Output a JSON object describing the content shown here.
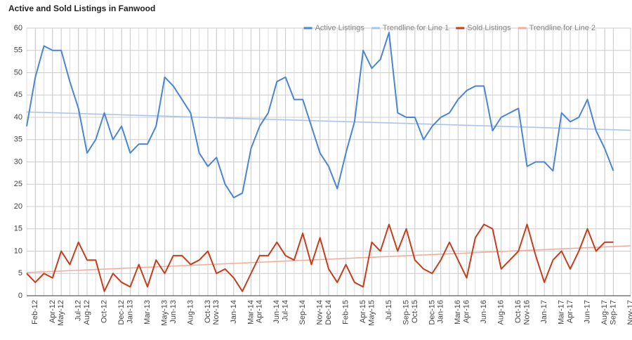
{
  "chart_data": {
    "type": "line",
    "title": "Active and Sold Listings in Fanwood",
    "x": [
      "2012-01",
      "2012-02",
      "2012-03",
      "2012-04",
      "2012-05",
      "2012-06",
      "2012-07",
      "2012-08",
      "2012-09",
      "2012-10",
      "2012-11",
      "2012-12",
      "2013-01",
      "2013-02",
      "2013-03",
      "2013-04",
      "2013-05",
      "2013-06",
      "2013-07",
      "2013-08",
      "2013-09",
      "2013-10",
      "2013-11",
      "2013-12",
      "2014-01",
      "2014-02",
      "2014-03",
      "2014-04",
      "2014-05",
      "2014-06",
      "2014-07",
      "2014-08",
      "2014-09",
      "2014-10",
      "2014-11",
      "2014-12",
      "2015-01",
      "2015-02",
      "2015-03",
      "2015-04",
      "2015-05",
      "2015-06",
      "2015-07",
      "2015-08",
      "2015-09",
      "2015-10",
      "2015-11",
      "2015-12",
      "2016-01",
      "2016-02",
      "2016-03",
      "2016-04",
      "2016-05",
      "2016-06",
      "2016-07",
      "2016-08",
      "2016-09",
      "2016-10",
      "2016-11",
      "2016-12",
      "2017-01",
      "2017-02",
      "2017-03",
      "2017-04",
      "2017-05",
      "2017-06",
      "2017-07",
      "2017-08",
      "2017-09"
    ],
    "series": [
      {
        "name": "Active Listings",
        "color": "#4a85d3",
        "values": [
          38,
          49,
          56,
          55,
          55,
          48,
          42,
          32,
          35,
          41,
          35,
          38,
          32,
          34,
          34,
          38,
          49,
          47,
          44,
          41,
          32,
          29,
          31,
          25,
          22,
          23,
          33,
          38,
          41,
          48,
          49,
          44,
          44,
          38,
          32,
          29,
          24,
          32,
          39,
          55,
          51,
          53,
          59,
          41,
          40,
          40,
          35,
          38,
          40,
          41,
          44,
          46,
          47,
          47,
          37,
          40,
          41,
          42,
          29,
          30,
          30,
          28,
          41,
          39,
          40,
          44,
          37,
          33,
          28
        ]
      },
      {
        "name": "Trendline for Line 1",
        "color": "#a9c5ef",
        "x": [
          "2012-01",
          "2017-11"
        ],
        "values": [
          41.2,
          37.1
        ]
      },
      {
        "name": "Sold Listings",
        "color": "#c53d1d",
        "values": [
          5,
          3,
          5,
          4,
          10,
          7,
          12,
          8,
          8,
          1,
          5,
          3,
          2,
          7,
          2,
          8,
          5,
          9,
          9,
          7,
          8,
          10,
          5,
          6,
          4,
          1,
          5,
          9,
          9,
          12,
          9,
          8,
          14,
          7,
          13,
          6,
          3,
          7,
          3,
          2,
          12,
          10,
          16,
          10,
          15,
          8,
          6,
          5,
          8,
          12,
          8,
          4,
          13,
          16,
          15,
          6,
          8,
          10,
          16,
          9,
          3,
          8,
          10,
          6,
          10,
          15,
          10,
          12,
          12
        ]
      },
      {
        "name": "Trendline for Line 2",
        "color": "#f2ad9d",
        "x": [
          "2012-01",
          "2017-11"
        ],
        "values": [
          5.2,
          11.2
        ]
      }
    ],
    "xlim": [
      "2012-01",
      "2017-11"
    ],
    "xticks": [
      {
        "value": "2012-02",
        "label": "Feb-12"
      },
      {
        "value": "2012-04",
        "label": "Apr-12"
      },
      {
        "value": "2012-05",
        "label": "May-12"
      },
      {
        "value": "2012-07",
        "label": "Jul-12"
      },
      {
        "value": "2012-08",
        "label": "Aug-12"
      },
      {
        "value": "2012-10",
        "label": "Oct-12"
      },
      {
        "value": "2012-12",
        "label": "Dec-12"
      },
      {
        "value": "2013-01",
        "label": "Jan-13"
      },
      {
        "value": "2013-03",
        "label": "Mar-13"
      },
      {
        "value": "2013-05",
        "label": "May-13"
      },
      {
        "value": "2013-06",
        "label": "Jun-13"
      },
      {
        "value": "2013-08",
        "label": "Aug-13"
      },
      {
        "value": "2013-10",
        "label": "Oct-13"
      },
      {
        "value": "2013-11",
        "label": "Nov-13"
      },
      {
        "value": "2014-01",
        "label": "Jan-14"
      },
      {
        "value": "2014-03",
        "label": "Mar-14"
      },
      {
        "value": "2014-04",
        "label": "Apr-14"
      },
      {
        "value": "2014-06",
        "label": "Jun-14"
      },
      {
        "value": "2014-07",
        "label": "Jul-14"
      },
      {
        "value": "2014-09",
        "label": "Sep-14"
      },
      {
        "value": "2014-11",
        "label": "Nov-14"
      },
      {
        "value": "2014-12",
        "label": "Dec-14"
      },
      {
        "value": "2015-02",
        "label": "Feb-15"
      },
      {
        "value": "2015-04",
        "label": "Apr-15"
      },
      {
        "value": "2015-05",
        "label": "May-15"
      },
      {
        "value": "2015-07",
        "label": "Jul-15"
      },
      {
        "value": "2015-09",
        "label": "Sep-15"
      },
      {
        "value": "2015-10",
        "label": "Oct-15"
      },
      {
        "value": "2015-12",
        "label": "Dec-15"
      },
      {
        "value": "2016-01",
        "label": "Jan-16"
      },
      {
        "value": "2016-03",
        "label": "Mar-16"
      },
      {
        "value": "2016-04",
        "label": "Apr-16"
      },
      {
        "value": "2016-06",
        "label": "Jun-16"
      },
      {
        "value": "2016-08",
        "label": "Aug-16"
      },
      {
        "value": "2016-10",
        "label": "Oct-16"
      },
      {
        "value": "2016-11",
        "label": "Nov-16"
      },
      {
        "value": "2017-01",
        "label": "Jan-17"
      },
      {
        "value": "2017-03",
        "label": "Mar-17"
      },
      {
        "value": "2017-04",
        "label": "Apr-17"
      },
      {
        "value": "2017-06",
        "label": "Jun-17"
      },
      {
        "value": "2017-08",
        "label": "Aug-17"
      },
      {
        "value": "2017-09",
        "label": "Sep-17"
      },
      {
        "value": "2017-11",
        "label": "Nov-17"
      }
    ],
    "ylim": [
      0,
      60
    ],
    "yticks": [
      0,
      5,
      10,
      15,
      20,
      25,
      30,
      35,
      40,
      45,
      50,
      55,
      60
    ],
    "grid": true,
    "legend": "top-right"
  }
}
